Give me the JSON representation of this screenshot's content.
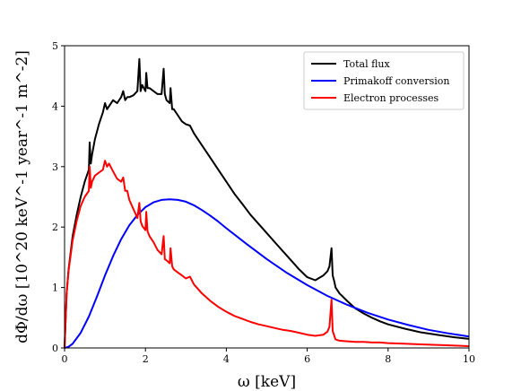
{
  "chart_data": {
    "type": "line",
    "xlabel": "ω  [keV]",
    "ylabel": "dΦ/dω  [10^20 keV^-1 year^-1 m^-2]",
    "xlim": [
      0,
      10
    ],
    "ylim": [
      0,
      5
    ],
    "xticks": [
      0,
      2,
      4,
      6,
      8,
      10
    ],
    "yticks": [
      0,
      1,
      2,
      3,
      4,
      5
    ],
    "grid": false,
    "legend_position": "top-right",
    "series": [
      {
        "name": "Total flux",
        "color": "#000000",
        "x": [
          0,
          0.05,
          0.1,
          0.2,
          0.3,
          0.4,
          0.5,
          0.6,
          0.62,
          0.65,
          0.68,
          0.75,
          0.85,
          0.95,
          1.0,
          1.05,
          1.1,
          1.2,
          1.3,
          1.4,
          1.45,
          1.5,
          1.55,
          1.6,
          1.7,
          1.8,
          1.85,
          1.88,
          1.92,
          2.0,
          2.02,
          2.05,
          2.1,
          2.2,
          2.3,
          2.4,
          2.45,
          2.48,
          2.52,
          2.6,
          2.62,
          2.66,
          2.7,
          2.8,
          2.9,
          3.0,
          3.1,
          3.2,
          3.4,
          3.6,
          3.8,
          4.0,
          4.2,
          4.4,
          4.6,
          4.8,
          5.0,
          5.2,
          5.4,
          5.6,
          5.8,
          6.0,
          6.2,
          6.4,
          6.5,
          6.55,
          6.6,
          6.63,
          6.67,
          6.7,
          6.8,
          7.0,
          7.2,
          7.4,
          7.6,
          7.8,
          8.0,
          8.4,
          8.8,
          9.2,
          9.6,
          10.0
        ],
        "y": [
          0,
          0.9,
          1.3,
          1.85,
          2.2,
          2.5,
          2.75,
          2.95,
          3.4,
          3.05,
          3.2,
          3.45,
          3.7,
          3.9,
          4.05,
          3.95,
          4.0,
          4.1,
          4.05,
          4.15,
          4.25,
          4.1,
          4.15,
          4.15,
          4.18,
          4.25,
          4.78,
          4.25,
          4.35,
          4.25,
          4.55,
          4.3,
          4.3,
          4.25,
          4.2,
          4.2,
          4.62,
          4.2,
          4.1,
          4.05,
          4.3,
          3.95,
          3.95,
          3.85,
          3.75,
          3.7,
          3.68,
          3.55,
          3.35,
          3.15,
          2.95,
          2.75,
          2.55,
          2.38,
          2.2,
          2.05,
          1.9,
          1.75,
          1.6,
          1.45,
          1.3,
          1.17,
          1.12,
          1.2,
          1.27,
          1.35,
          1.65,
          1.2,
          1.1,
          1.0,
          0.9,
          0.77,
          0.65,
          0.57,
          0.5,
          0.44,
          0.39,
          0.32,
          0.26,
          0.22,
          0.18,
          0.15
        ]
      },
      {
        "name": "Primakoff conversion",
        "color": "#0000ff",
        "x": [
          0,
          0.1,
          0.2,
          0.4,
          0.6,
          0.8,
          1.0,
          1.2,
          1.4,
          1.6,
          1.8,
          2.0,
          2.2,
          2.4,
          2.6,
          2.8,
          3.0,
          3.2,
          3.4,
          3.6,
          3.8,
          4.0,
          4.5,
          5.0,
          5.5,
          6.0,
          6.5,
          7.0,
          7.5,
          8.0,
          8.5,
          9.0,
          9.5,
          10.0
        ],
        "y": [
          0,
          0.02,
          0.07,
          0.25,
          0.52,
          0.85,
          1.2,
          1.52,
          1.8,
          2.03,
          2.2,
          2.33,
          2.41,
          2.45,
          2.46,
          2.45,
          2.42,
          2.36,
          2.28,
          2.19,
          2.09,
          1.98,
          1.72,
          1.47,
          1.24,
          1.04,
          0.86,
          0.71,
          0.58,
          0.47,
          0.38,
          0.3,
          0.24,
          0.19
        ]
      },
      {
        "name": "Electron processes",
        "color": "#ff0000",
        "x": [
          0,
          0.05,
          0.1,
          0.2,
          0.3,
          0.4,
          0.5,
          0.6,
          0.62,
          0.65,
          0.68,
          0.75,
          0.85,
          0.95,
          1.0,
          1.05,
          1.1,
          1.2,
          1.3,
          1.4,
          1.45,
          1.5,
          1.55,
          1.6,
          1.7,
          1.8,
          1.85,
          1.88,
          1.92,
          2.0,
          2.02,
          2.05,
          2.1,
          2.2,
          2.3,
          2.4,
          2.45,
          2.48,
          2.52,
          2.6,
          2.62,
          2.66,
          2.7,
          2.8,
          2.9,
          3.0,
          3.1,
          3.2,
          3.4,
          3.6,
          3.8,
          4.0,
          4.2,
          4.4,
          4.6,
          4.8,
          5.0,
          5.2,
          5.4,
          5.6,
          5.8,
          6.0,
          6.2,
          6.4,
          6.5,
          6.55,
          6.6,
          6.63,
          6.67,
          6.7,
          6.8,
          7.0,
          7.2,
          7.4,
          7.6,
          7.8,
          8.0,
          8.4,
          8.8,
          9.2,
          9.6,
          10.0
        ],
        "y": [
          0,
          0.9,
          1.28,
          1.78,
          2.1,
          2.35,
          2.5,
          2.6,
          3.0,
          2.65,
          2.75,
          2.85,
          2.9,
          2.95,
          3.1,
          3.0,
          3.05,
          2.92,
          2.8,
          2.75,
          2.82,
          2.6,
          2.6,
          2.45,
          2.3,
          2.15,
          2.4,
          2.1,
          2.02,
          1.95,
          2.25,
          1.93,
          1.85,
          1.75,
          1.62,
          1.55,
          1.85,
          1.47,
          1.45,
          1.4,
          1.65,
          1.35,
          1.3,
          1.25,
          1.2,
          1.15,
          1.18,
          1.05,
          0.9,
          0.78,
          0.68,
          0.6,
          0.53,
          0.48,
          0.43,
          0.39,
          0.36,
          0.33,
          0.3,
          0.28,
          0.25,
          0.22,
          0.2,
          0.22,
          0.27,
          0.35,
          0.8,
          0.28,
          0.2,
          0.14,
          0.12,
          0.11,
          0.1,
          0.1,
          0.09,
          0.09,
          0.08,
          0.07,
          0.06,
          0.05,
          0.04,
          0.03
        ]
      }
    ]
  }
}
